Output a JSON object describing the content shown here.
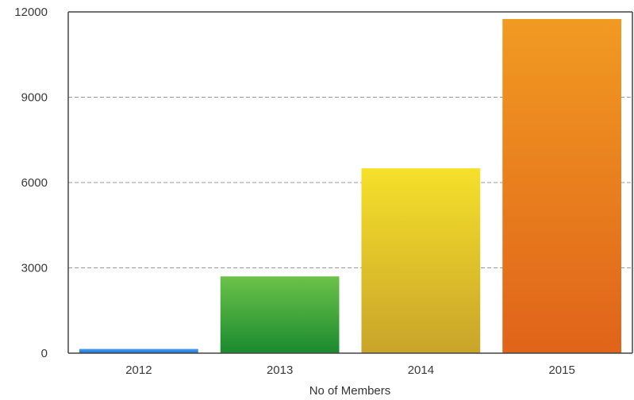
{
  "chart_data": {
    "type": "bar",
    "title": "",
    "xlabel": "No of Members",
    "ylabel": "",
    "categories": [
      "2012",
      "2013",
      "2014",
      "2015"
    ],
    "values": [
      150,
      2700,
      6500,
      11750
    ],
    "ylim": [
      0,
      12000
    ],
    "yticks": [
      "0",
      "3000",
      "6000",
      "9000",
      "12000"
    ],
    "grid": true,
    "legend": "none",
    "bar_gradients": [
      [
        "#4aa3f0",
        "#1f6fd0"
      ],
      [
        "#6cc24a",
        "#1a8a2e"
      ],
      [
        "#f6e02a",
        "#c9a42a"
      ],
      [
        "#f19a22",
        "#e0631a"
      ]
    ]
  }
}
